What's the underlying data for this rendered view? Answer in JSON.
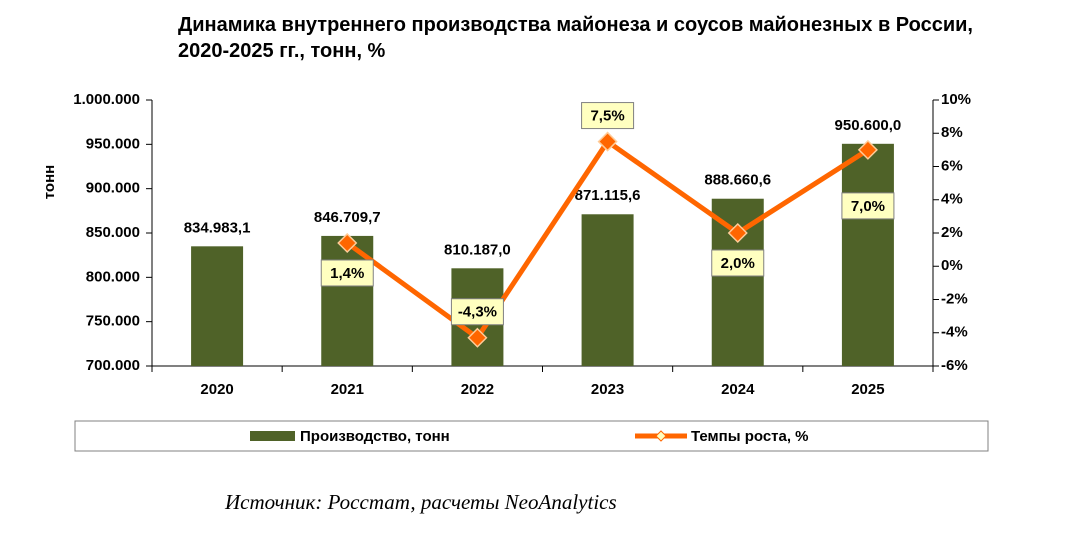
{
  "chart_data": {
    "type": "bar-line",
    "title": "Динамика внутреннего производства майонеза и соусов майонезных в России, 2020-2025 гг., тонн, %",
    "source": "Источник: Росстат, расчеты NeoAnalytics",
    "ylabel": "тонн",
    "categories": [
      "2020",
      "2021",
      "2022",
      "2023",
      "2024",
      "2025"
    ],
    "series": [
      {
        "name": "Производство, тонн",
        "type": "bar",
        "color": "#4f6228",
        "values": [
          834983.1,
          846709.7,
          810187.0,
          871115.6,
          888660.6,
          950600.0
        ],
        "value_labels": [
          "834.983,1",
          "846.709,7",
          "810.187,0",
          "871.115,6",
          "888.660,6",
          "950.600,0"
        ]
      },
      {
        "name": "Темпы роста, %",
        "type": "line",
        "axis": "y2",
        "color": "#ff6600",
        "values": [
          null,
          1.4,
          -4.3,
          7.5,
          2.0,
          7.0
        ],
        "value_labels": [
          null,
          "1,4%",
          "-4,3%",
          "7,5%",
          "2,0%",
          "7,0%"
        ]
      }
    ],
    "ylim": [
      700000,
      1000000
    ],
    "yticks": [
      {
        "value": 700000,
        "label": "700.000"
      },
      {
        "value": 750000,
        "label": "750.000"
      },
      {
        "value": 800000,
        "label": "800.000"
      },
      {
        "value": 850000,
        "label": "850.000"
      },
      {
        "value": 900000,
        "label": "900.000"
      },
      {
        "value": 950000,
        "label": "950.000"
      },
      {
        "value": 1000000,
        "label": "1.000.000"
      }
    ],
    "y2lim": [
      -6,
      10
    ],
    "y2ticks": [
      {
        "value": -6,
        "label": "-6%"
      },
      {
        "value": -4,
        "label": "-4%"
      },
      {
        "value": -2,
        "label": "-2%"
      },
      {
        "value": 0,
        "label": "0%"
      },
      {
        "value": 2,
        "label": "2%"
      },
      {
        "value": 4,
        "label": "4%"
      },
      {
        "value": 6,
        "label": "6%"
      },
      {
        "value": 8,
        "label": "8%"
      },
      {
        "value": 10,
        "label": "10%"
      }
    ],
    "grid": false
  }
}
